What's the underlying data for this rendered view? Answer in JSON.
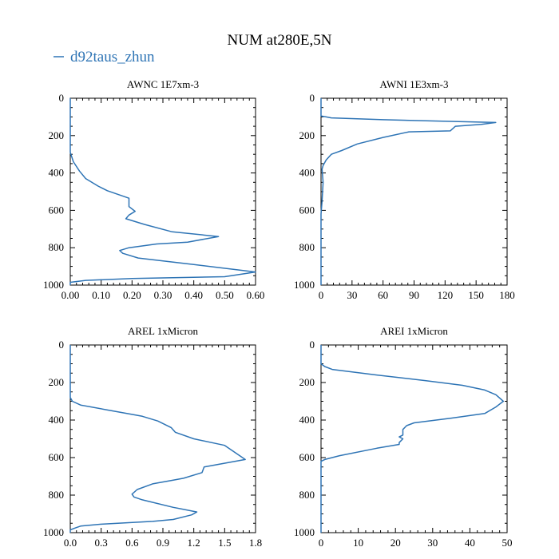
{
  "figure": {
    "title": "NUM at280E,5N",
    "legend": {
      "label": "d92taus_zhun",
      "color": "#2e74b5",
      "position": "top-left"
    }
  },
  "chart_data": [
    {
      "type": "line",
      "title": "AWNC  1E7xm-3",
      "xlim": [
        0,
        0.6
      ],
      "xticks": [
        "0.00",
        "0.10",
        "0.20",
        "0.30",
        "0.40",
        "0.50",
        "0.60"
      ],
      "ylim": [
        0,
        1000
      ],
      "yticks": [
        "0",
        "200",
        "400",
        "600",
        "800",
        "1000"
      ],
      "y_inverted": true,
      "series": [
        {
          "name": "d92taus_zhun",
          "points": [
            [
              0.0,
              0
            ],
            [
              0.0,
              250
            ],
            [
              0.0,
              290
            ],
            [
              0.01,
              340
            ],
            [
              0.03,
              390
            ],
            [
              0.05,
              430
            ],
            [
              0.09,
              470
            ],
            [
              0.12,
              495
            ],
            [
              0.19,
              535
            ],
            [
              0.19,
              580
            ],
            [
              0.21,
              605
            ],
            [
              0.19,
              625
            ],
            [
              0.18,
              645
            ],
            [
              0.24,
              675
            ],
            [
              0.33,
              715
            ],
            [
              0.48,
              740
            ],
            [
              0.38,
              770
            ],
            [
              0.28,
              780
            ],
            [
              0.19,
              800
            ],
            [
              0.16,
              815
            ],
            [
              0.17,
              830
            ],
            [
              0.22,
              855
            ],
            [
              0.4,
              890
            ],
            [
              0.6,
              930
            ],
            [
              0.5,
              955
            ],
            [
              0.2,
              965
            ],
            [
              0.05,
              975
            ],
            [
              0.0,
              985
            ],
            [
              0.0,
              1000
            ]
          ]
        }
      ]
    },
    {
      "type": "line",
      "title": "AWNI  1E3xm-3",
      "xlim": [
        0,
        180
      ],
      "xticks": [
        "0",
        "30",
        "60",
        "90",
        "120",
        "150",
        "180"
      ],
      "ylim": [
        0,
        1000
      ],
      "yticks": [
        "0",
        "200",
        "400",
        "600",
        "800",
        "1000"
      ],
      "y_inverted": true,
      "series": [
        {
          "name": "d92taus_zhun",
          "points": [
            [
              0,
              0
            ],
            [
              0,
              95
            ],
            [
              5,
              100
            ],
            [
              10,
              105
            ],
            [
              60,
              115
            ],
            [
              169,
              130
            ],
            [
              155,
              140
            ],
            [
              130,
              150
            ],
            [
              125,
              175
            ],
            [
              85,
              180
            ],
            [
              60,
              210
            ],
            [
              35,
              245
            ],
            [
              20,
              280
            ],
            [
              10,
              300
            ],
            [
              5,
              330
            ],
            [
              2,
              360
            ],
            [
              1,
              380
            ],
            [
              2,
              450
            ],
            [
              1,
              550
            ],
            [
              0,
              620
            ],
            [
              0,
              1000
            ]
          ]
        }
      ]
    },
    {
      "type": "line",
      "title": "AREL  1xMicron",
      "xlim": [
        0,
        1.8
      ],
      "xticks": [
        "0.0",
        "0.3",
        "0.6",
        "0.9",
        "1.2",
        "1.5",
        "1.8"
      ],
      "ylim": [
        0,
        1000
      ],
      "yticks": [
        "0",
        "200",
        "400",
        "600",
        "800",
        "1000"
      ],
      "y_inverted": true,
      "series": [
        {
          "name": "d92taus_zhun",
          "points": [
            [
              0.0,
              0
            ],
            [
              0.0,
              280
            ],
            [
              0.02,
              300
            ],
            [
              0.1,
              320
            ],
            [
              0.35,
              345
            ],
            [
              0.55,
              365
            ],
            [
              0.7,
              380
            ],
            [
              0.85,
              405
            ],
            [
              0.98,
              440
            ],
            [
              1.02,
              465
            ],
            [
              1.2,
              500
            ],
            [
              1.5,
              535
            ],
            [
              1.7,
              610
            ],
            [
              1.3,
              650
            ],
            [
              1.28,
              680
            ],
            [
              1.1,
              710
            ],
            [
              1.0,
              720
            ],
            [
              0.8,
              740
            ],
            [
              0.65,
              770
            ],
            [
              0.6,
              795
            ],
            [
              0.62,
              810
            ],
            [
              0.7,
              825
            ],
            [
              1.0,
              865
            ],
            [
              1.23,
              890
            ],
            [
              1.18,
              905
            ],
            [
              1.0,
              930
            ],
            [
              0.8,
              940
            ],
            [
              0.3,
              955
            ],
            [
              0.1,
              965
            ],
            [
              0.05,
              975
            ],
            [
              0.0,
              985
            ],
            [
              0.0,
              1000
            ]
          ]
        }
      ]
    },
    {
      "type": "line",
      "title": "AREI  1xMicron",
      "xlim": [
        0,
        50
      ],
      "xticks": [
        "0",
        "10",
        "20",
        "30",
        "40",
        "50"
      ],
      "ylim": [
        0,
        1000
      ],
      "yticks": [
        "0",
        "200",
        "400",
        "600",
        "800",
        "1000"
      ],
      "y_inverted": true,
      "series": [
        {
          "name": "d92taus_zhun",
          "points": [
            [
              0,
              0
            ],
            [
              0,
              100
            ],
            [
              1,
              115
            ],
            [
              3,
              130
            ],
            [
              15,
              160
            ],
            [
              28,
              190
            ],
            [
              38,
              215
            ],
            [
              44,
              240
            ],
            [
              47,
              265
            ],
            [
              49,
              300
            ],
            [
              47,
              330
            ],
            [
              44,
              365
            ],
            [
              35,
              390
            ],
            [
              25,
              415
            ],
            [
              23,
              430
            ],
            [
              22,
              450
            ],
            [
              22,
              465
            ],
            [
              22,
              480
            ],
            [
              21,
              490
            ],
            [
              22,
              500
            ],
            [
              21,
              520
            ],
            [
              21,
              530
            ],
            [
              15,
              550
            ],
            [
              5,
              590
            ],
            [
              1,
              610
            ],
            [
              0,
              620
            ],
            [
              0,
              1000
            ]
          ]
        }
      ]
    }
  ]
}
